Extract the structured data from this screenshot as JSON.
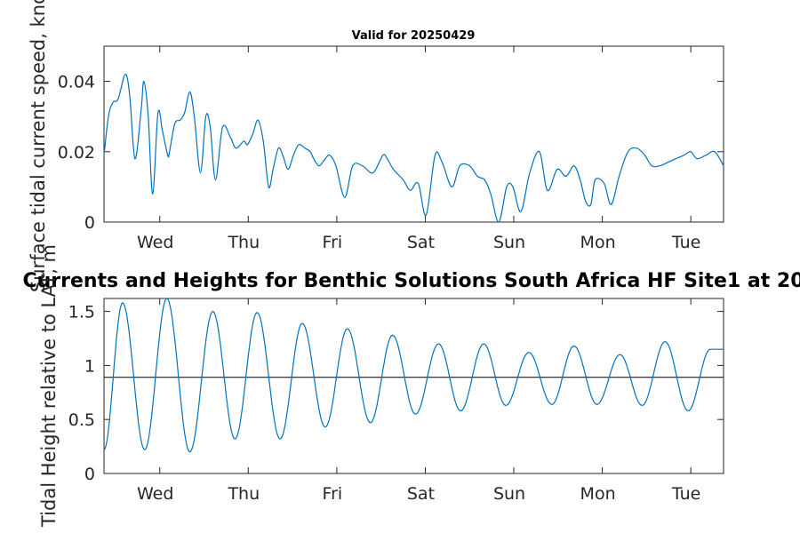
{
  "chart_data": [
    {
      "type": "line",
      "title": "Valid for 20250429",
      "ylabel": "Surface tidal current speed, knots",
      "xlabel": "",
      "ylim": [
        0,
        0.05
      ],
      "xlim": [
        0,
        7
      ],
      "yticks": [
        "0",
        "0.02",
        "0.04"
      ],
      "ytick_values": [
        0,
        0.02,
        0.04
      ],
      "categories": [
        "Wed",
        "Thu",
        "Fri",
        "Sat",
        "Sun",
        "Mon",
        "Tue"
      ],
      "category_positions": [
        0.63,
        1.63,
        2.63,
        3.63,
        4.63,
        5.63,
        6.63
      ],
      "grid": false,
      "series": [
        {
          "color": "#0072BD",
          "x": [
            0.0,
            0.05,
            0.1,
            0.16,
            0.24,
            0.29,
            0.35,
            0.42,
            0.45,
            0.5,
            0.55,
            0.61,
            0.66,
            0.72,
            0.74,
            0.8,
            0.86,
            0.91,
            0.97,
            1.02,
            1.09,
            1.15,
            1.2,
            1.26,
            1.34,
            1.43,
            1.49,
            1.58,
            1.62,
            1.68,
            1.74,
            1.8,
            1.86,
            1.91,
            1.97,
            2.02,
            2.08,
            2.14,
            2.2,
            2.27,
            2.33,
            2.37,
            2.43,
            2.5,
            2.55,
            2.62,
            2.72,
            2.81,
            2.92,
            3.04,
            3.15,
            3.2,
            3.27,
            3.38,
            3.46,
            3.55,
            3.64,
            3.74,
            3.82,
            3.93,
            4.02,
            4.13,
            4.22,
            4.3,
            4.37,
            4.46,
            4.55,
            4.62,
            4.71,
            4.81,
            4.92,
            5.01,
            5.12,
            5.22,
            5.31,
            5.38,
            5.44,
            5.5,
            5.55,
            5.65,
            5.73,
            5.82,
            5.92,
            6.02,
            6.11,
            6.19,
            6.28,
            6.37,
            6.46,
            6.55,
            6.63,
            6.7,
            6.8,
            6.9,
            7.0
          ],
          "values": [
            0.019,
            0.03,
            0.034,
            0.035,
            0.042,
            0.036,
            0.018,
            0.032,
            0.04,
            0.03,
            0.008,
            0.031,
            0.026,
            0.019,
            0.02,
            0.028,
            0.029,
            0.031,
            0.037,
            0.03,
            0.014,
            0.03,
            0.027,
            0.012,
            0.027,
            0.024,
            0.021,
            0.023,
            0.022,
            0.025,
            0.029,
            0.023,
            0.01,
            0.015,
            0.021,
            0.019,
            0.015,
            0.019,
            0.022,
            0.021,
            0.02,
            0.018,
            0.016,
            0.018,
            0.019,
            0.016,
            0.007,
            0.016,
            0.016,
            0.014,
            0.019,
            0.018,
            0.015,
            0.012,
            0.009,
            0.011,
            0.002,
            0.019,
            0.017,
            0.01,
            0.016,
            0.016,
            0.013,
            0.012,
            0.008,
            0.0,
            0.01,
            0.01,
            0.003,
            0.014,
            0.02,
            0.009,
            0.015,
            0.013,
            0.016,
            0.012,
            0.006,
            0.005,
            0.012,
            0.011,
            0.005,
            0.013,
            0.02,
            0.021,
            0.019,
            0.016,
            0.016,
            0.017,
            0.018,
            0.019,
            0.02,
            0.018,
            0.019,
            0.02,
            0.016
          ]
        }
      ]
    },
    {
      "type": "line",
      "title": "Currents and Heights for Benthic Solutions South Africa HF Site1 at 20",
      "ylabel": "Tidal Height relative to LAT, m",
      "xlabel": "",
      "ylim": [
        0,
        1.62
      ],
      "xlim": [
        0,
        7
      ],
      "yticks": [
        "0",
        "0.5",
        "1",
        "1.5"
      ],
      "ytick_values": [
        0,
        0.5,
        1,
        1.5
      ],
      "categories": [
        "Wed",
        "Thu",
        "Fri",
        "Sat",
        "Sun",
        "Mon",
        "Tue"
      ],
      "category_positions": [
        0.63,
        1.63,
        2.63,
        3.63,
        4.63,
        5.63,
        6.63
      ],
      "grid": false,
      "reference_line": {
        "y": 0.89,
        "color": "#000000"
      },
      "series": [
        {
          "color": "#0072BD",
          "extrema_x": [
            0.0,
            0.21,
            0.46,
            0.71,
            0.97,
            1.23,
            1.48,
            1.73,
            1.99,
            2.24,
            2.5,
            2.75,
            3.01,
            3.26,
            3.52,
            3.78,
            4.03,
            4.29,
            4.54,
            4.8,
            5.06,
            5.31,
            5.57,
            5.83,
            6.08,
            6.34,
            6.6,
            6.85,
            7.0
          ],
          "extrema_y": [
            0.22,
            1.58,
            0.22,
            1.62,
            0.2,
            1.5,
            0.32,
            1.49,
            0.32,
            1.39,
            0.43,
            1.34,
            0.47,
            1.28,
            0.55,
            1.2,
            0.58,
            1.2,
            0.63,
            1.12,
            0.64,
            1.18,
            0.64,
            1.1,
            0.63,
            1.22,
            0.58,
            1.15,
            1.15
          ]
        }
      ]
    }
  ]
}
